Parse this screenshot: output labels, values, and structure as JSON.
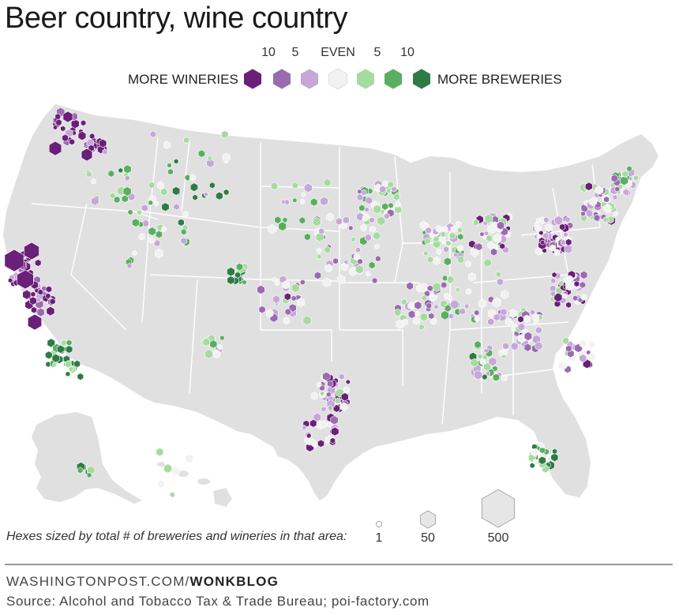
{
  "title": "Beer country, wine country",
  "legend": {
    "left_label": "MORE WINERIES",
    "right_label": "MORE BREWERIES",
    "scale_labels": [
      "10",
      "5",
      "EVEN",
      "5",
      "10"
    ],
    "colors": [
      "#6a1f78",
      "#9a6bb0",
      "#c5a7d8",
      "#f2f2f2",
      "#a6dba0",
      "#5aae61",
      "#2d7c45"
    ]
  },
  "size_legend": {
    "caption": "Hexes sized by total # of breweries and wineries in that area:",
    "labels": [
      "1",
      "50",
      "500"
    ]
  },
  "footer": {
    "site": "WASHINGTONPOST.COM/",
    "section": "WONKBLOG",
    "source": "Source: Alcohol and Tobacco Tax & Trade Bureau; poi-factory.com"
  },
  "map_colors": {
    "land": "#e0e0e0",
    "borders": "#ffffff"
  }
}
